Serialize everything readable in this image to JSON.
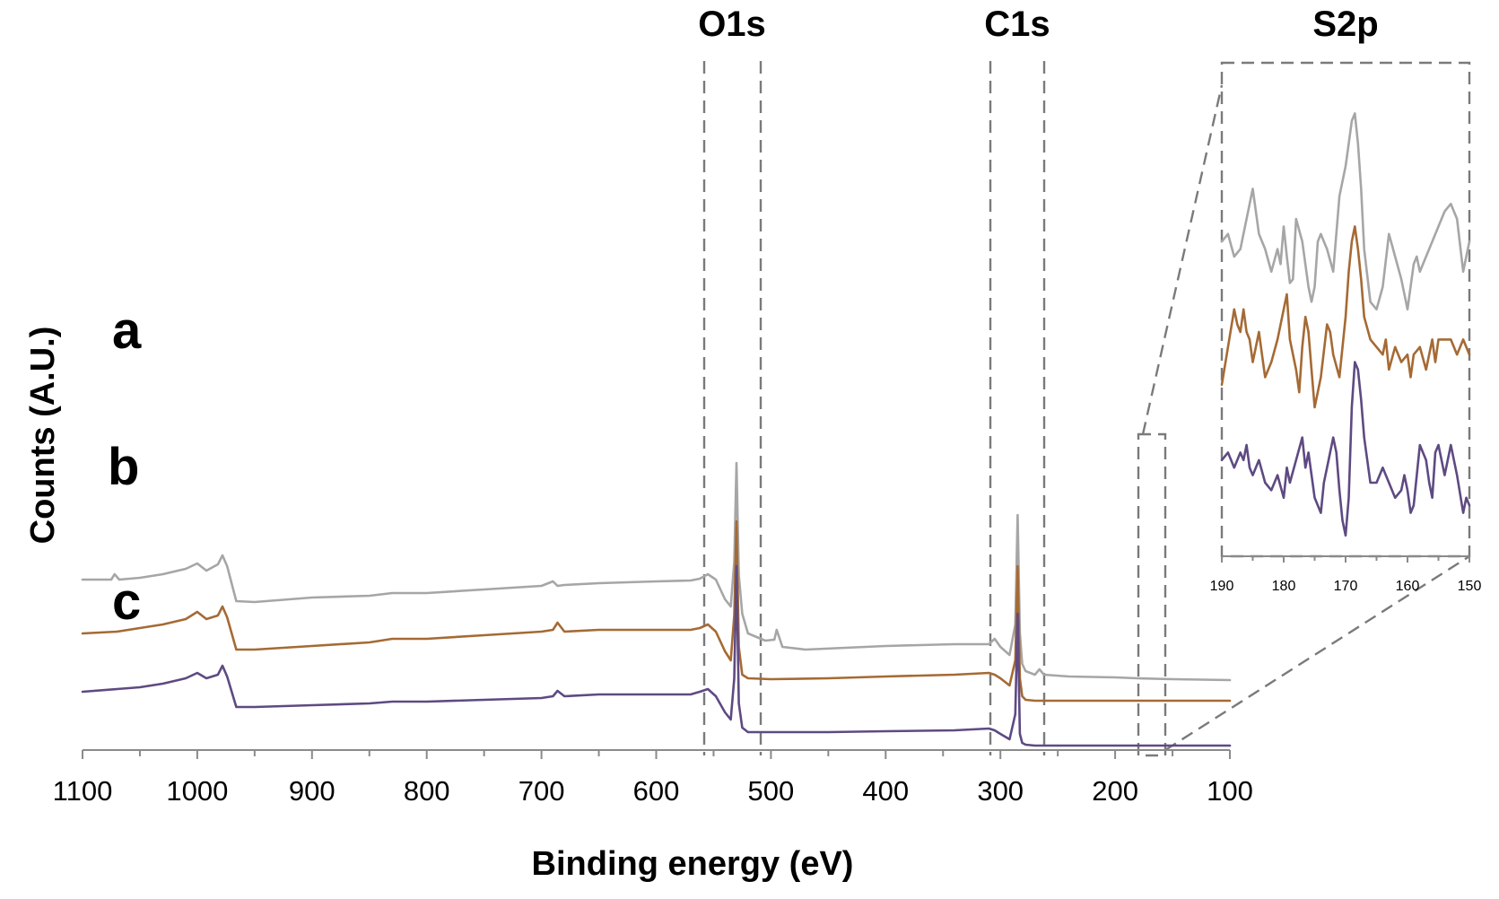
{
  "chart_data": {
    "type": "line",
    "xlabel": "Binding energy (eV)",
    "ylabel": "Counts (A.U.)",
    "xlim": [
      1100,
      100
    ],
    "x_reversed": true,
    "x_ticks": [
      "1100",
      "1000",
      "900",
      "800",
      "700",
      "600",
      "500",
      "400",
      "300",
      "200",
      "100"
    ],
    "y_ticks_shown": false,
    "grid": false,
    "legend": "none",
    "region_labels": [
      {
        "label": "O1s",
        "range": [
          555,
          505
        ]
      },
      {
        "label": "C1s",
        "range": [
          305,
          260
        ]
      },
      {
        "label": "S2p",
        "range": [
          178,
          155
        ]
      }
    ],
    "series": [
      {
        "name": "a",
        "color": "#a6a6a6",
        "x": [
          1100,
          1075,
          1072,
          1068,
          1050,
          1030,
          1010,
          1000,
          992,
          982,
          978,
          974,
          966,
          950,
          900,
          850,
          830,
          800,
          750,
          700,
          690,
          686,
          680,
          650,
          600,
          570,
          562,
          555,
          548,
          540,
          535,
          532,
          530,
          528,
          525,
          520,
          505,
          497,
          495,
          490,
          470,
          400,
          340,
          310,
          305,
          300,
          292,
          287,
          285,
          283,
          281,
          278,
          270,
          266,
          262,
          240,
          200,
          180,
          150,
          100
        ],
        "y": [
          1.8,
          1.8,
          1.86,
          1.8,
          1.82,
          1.86,
          1.92,
          1.98,
          1.9,
          1.97,
          2.07,
          1.95,
          1.56,
          1.55,
          1.6,
          1.62,
          1.65,
          1.65,
          1.69,
          1.73,
          1.78,
          1.73,
          1.74,
          1.76,
          1.78,
          1.79,
          1.81,
          1.86,
          1.8,
          1.58,
          1.5,
          2.0,
          3.1,
          1.85,
          1.42,
          1.2,
          1.12,
          1.13,
          1.24,
          1.05,
          1.02,
          1.06,
          1.08,
          1.08,
          1.14,
          1.05,
          0.96,
          1.3,
          2.52,
          1.2,
          0.86,
          0.78,
          0.74,
          0.8,
          0.74,
          0.72,
          0.71,
          0.7,
          0.69,
          0.68
        ]
      },
      {
        "name": "b",
        "color": "#a56a34",
        "x": [
          1100,
          1070,
          1050,
          1030,
          1010,
          1000,
          992,
          982,
          978,
          974,
          966,
          950,
          900,
          850,
          830,
          800,
          750,
          700,
          690,
          686,
          680,
          650,
          600,
          570,
          562,
          555,
          548,
          540,
          535,
          532,
          530,
          528,
          525,
          520,
          500,
          450,
          400,
          340,
          310,
          305,
          300,
          292,
          287,
          285,
          283,
          281,
          278,
          270,
          200,
          150,
          100
        ],
        "y": [
          1.2,
          1.22,
          1.26,
          1.3,
          1.36,
          1.44,
          1.36,
          1.4,
          1.5,
          1.38,
          1.02,
          1.02,
          1.06,
          1.1,
          1.14,
          1.14,
          1.18,
          1.22,
          1.24,
          1.32,
          1.22,
          1.24,
          1.24,
          1.24,
          1.26,
          1.3,
          1.22,
          1.0,
          0.9,
          1.4,
          2.45,
          1.05,
          0.74,
          0.7,
          0.69,
          0.7,
          0.72,
          0.74,
          0.76,
          0.74,
          0.7,
          0.62,
          0.9,
          1.95,
          0.7,
          0.5,
          0.46,
          0.45,
          0.45,
          0.45,
          0.45
        ]
      },
      {
        "name": "c",
        "color": "#5e4a82",
        "x": [
          1100,
          1070,
          1050,
          1030,
          1010,
          1000,
          992,
          982,
          978,
          974,
          966,
          950,
          900,
          850,
          830,
          800,
          750,
          700,
          690,
          686,
          680,
          650,
          600,
          570,
          562,
          555,
          548,
          540,
          535,
          532,
          530,
          528,
          525,
          520,
          500,
          450,
          400,
          340,
          310,
          305,
          300,
          292,
          287,
          285,
          283,
          281,
          278,
          270,
          200,
          150,
          100
        ],
        "y": [
          0.55,
          0.58,
          0.6,
          0.64,
          0.7,
          0.76,
          0.7,
          0.74,
          0.84,
          0.72,
          0.38,
          0.38,
          0.4,
          0.42,
          0.44,
          0.44,
          0.46,
          0.48,
          0.5,
          0.56,
          0.5,
          0.52,
          0.52,
          0.52,
          0.55,
          0.58,
          0.5,
          0.32,
          0.24,
          0.7,
          1.95,
          0.42,
          0.15,
          0.1,
          0.1,
          0.1,
          0.11,
          0.12,
          0.14,
          0.12,
          0.08,
          0.02,
          0.3,
          1.42,
          0.08,
          -0.02,
          -0.04,
          -0.05,
          -0.05,
          -0.05,
          -0.05
        ]
      }
    ],
    "inset": {
      "title": "S2p",
      "xlim": [
        190,
        150
      ],
      "x_ticks": [
        "190",
        "180",
        "170",
        "160",
        "150"
      ],
      "series": [
        {
          "name": "a",
          "color": "#a6a6a6",
          "x": [
            190,
            189,
            188,
            187,
            186,
            185,
            184,
            183,
            182,
            181,
            180.5,
            180,
            179.5,
            179,
            178.5,
            178,
            177,
            176,
            175.5,
            175,
            174.5,
            174,
            173.5,
            173,
            172,
            171,
            170,
            169.5,
            169,
            168.5,
            168,
            167.5,
            167,
            166,
            165,
            164,
            163,
            162.5,
            162,
            161,
            160,
            159,
            158.5,
            158,
            157,
            156,
            155,
            154,
            153,
            152,
            151,
            150.5,
            150
          ],
          "y": [
            0.74,
            0.76,
            0.7,
            0.72,
            0.8,
            0.88,
            0.76,
            0.72,
            0.66,
            0.72,
            0.68,
            0.78,
            0.7,
            0.63,
            0.64,
            0.8,
            0.74,
            0.62,
            0.58,
            0.62,
            0.74,
            0.76,
            0.74,
            0.72,
            0.66,
            0.86,
            0.94,
            1.0,
            1.06,
            1.08,
            1.0,
            0.88,
            0.72,
            0.58,
            0.56,
            0.62,
            0.76,
            0.73,
            0.7,
            0.64,
            0.56,
            0.68,
            0.7,
            0.66,
            0.7,
            0.74,
            0.78,
            0.82,
            0.84,
            0.8,
            0.66,
            0.7,
            0.74
          ]
        },
        {
          "name": "b",
          "color": "#a56a34",
          "x": [
            190,
            189,
            188,
            187.5,
            187,
            186.5,
            186,
            185.5,
            185,
            184,
            183.5,
            183,
            182,
            181,
            180,
            179.5,
            179,
            178,
            177.5,
            177,
            176.5,
            176,
            175.5,
            175,
            174,
            173,
            172.5,
            172,
            171,
            170,
            169.5,
            169,
            168.5,
            168,
            167.5,
            167,
            166,
            165,
            164,
            163.5,
            163,
            162,
            161,
            160,
            159.5,
            159,
            158,
            157,
            156,
            155.5,
            155,
            154,
            153,
            152,
            151,
            150
          ],
          "y": [
            0.36,
            0.46,
            0.56,
            0.52,
            0.5,
            0.56,
            0.5,
            0.48,
            0.42,
            0.5,
            0.44,
            0.38,
            0.42,
            0.48,
            0.56,
            0.6,
            0.48,
            0.4,
            0.34,
            0.46,
            0.54,
            0.5,
            0.4,
            0.3,
            0.38,
            0.52,
            0.5,
            0.44,
            0.38,
            0.54,
            0.66,
            0.74,
            0.78,
            0.72,
            0.64,
            0.54,
            0.48,
            0.46,
            0.44,
            0.48,
            0.4,
            0.46,
            0.42,
            0.44,
            0.38,
            0.44,
            0.46,
            0.4,
            0.48,
            0.42,
            0.48,
            0.48,
            0.48,
            0.44,
            0.48,
            0.44
          ]
        },
        {
          "name": "c",
          "color": "#5e4a82",
          "x": [
            190,
            189,
            188,
            187,
            186.5,
            186,
            185.5,
            185,
            184,
            183,
            182,
            181,
            180,
            179.5,
            179,
            178,
            177,
            176.5,
            176,
            175,
            174,
            173.5,
            173,
            172,
            171.5,
            171,
            170.5,
            170,
            169.5,
            169,
            168.5,
            168,
            167.5,
            167,
            166,
            165,
            164,
            163,
            162,
            161,
            160.5,
            160,
            159.5,
            159,
            158,
            157,
            156.5,
            156,
            155.5,
            155,
            154,
            153,
            152,
            151,
            150.5,
            150
          ],
          "y": [
            0.16,
            0.18,
            0.14,
            0.18,
            0.16,
            0.2,
            0.14,
            0.12,
            0.16,
            0.1,
            0.08,
            0.12,
            0.06,
            0.14,
            0.1,
            0.16,
            0.22,
            0.14,
            0.18,
            0.06,
            0.02,
            0.1,
            0.14,
            0.22,
            0.18,
            0.08,
            0.0,
            -0.04,
            0.06,
            0.3,
            0.42,
            0.4,
            0.32,
            0.22,
            0.1,
            0.1,
            0.14,
            0.1,
            0.06,
            0.08,
            0.12,
            0.08,
            0.02,
            0.04,
            0.2,
            0.16,
            0.1,
            0.06,
            0.18,
            0.2,
            0.12,
            0.2,
            0.12,
            0.02,
            0.06,
            0.04
          ]
        }
      ]
    }
  }
}
